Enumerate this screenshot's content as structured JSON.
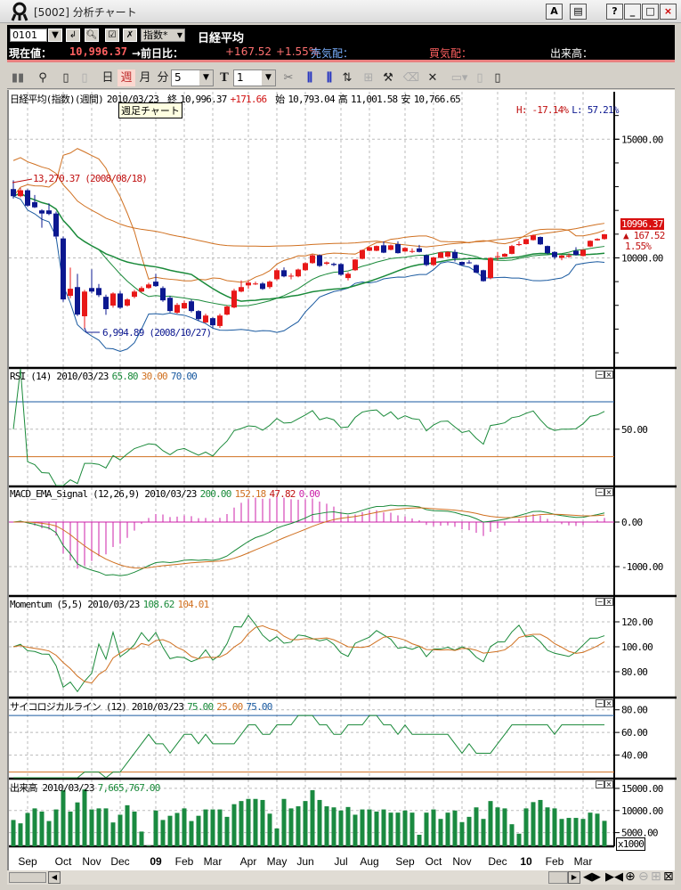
{
  "window": {
    "title": "[5002]  分析チャート",
    "buttons": [
      "A",
      "▤",
      "?",
      "_",
      "□",
      "×"
    ]
  },
  "infobar": {
    "code": "0101",
    "market_select": "指数*",
    "name": "日経平均",
    "current_label": "現在値：",
    "current_value": "10,996.37",
    "change_label": "→前日比：",
    "change_value": "+167.52",
    "change_pct": "+1.55%",
    "ask_label": "売気配：",
    "bid_label": "買気配：",
    "volume_label": "出来高："
  },
  "toolbar": {
    "periods": [
      "日",
      "週",
      "月",
      "分"
    ],
    "selected_period": "週",
    "minute_value": "5",
    "t_label": "T",
    "t_value": "1"
  },
  "main": {
    "header": {
      "title": "日経平均(指数)(週間)",
      "date": "2010/03/23",
      "close_label": "終",
      "close": "10,996.37",
      "change": "+171.66",
      "open_label": "始",
      "open": "10,793.04",
      "high_label": "高",
      "high": "11,001.58",
      "low_label": "安",
      "low": "10,766.65"
    },
    "tooltip": "週足チャート",
    "hl_h": "H: -17.14%",
    "hl_l": "L: 57.21%",
    "high_annotation": "13,270.37 (2008/08/18)",
    "low_annotation": "6,994.89 (2008/10/27)",
    "price_tag": "10996.37",
    "price_change": "▲ 167.52",
    "price_pct": "1.55%"
  },
  "panels": {
    "rsi": {
      "title": "RSI (14) 2010/03/23",
      "values": [
        "65.80",
        "30.00",
        "70.00"
      ]
    },
    "macd": {
      "title": "MACD_EMA_Signal (12,26,9) 2010/03/23",
      "values": [
        "200.00",
        "152.18",
        "47.82",
        "0.00"
      ]
    },
    "momentum": {
      "title": "Momentum (5,5) 2010/03/23",
      "values": [
        "108.62",
        "104.01"
      ]
    },
    "psych": {
      "title": "サイコロジカルライン (12) 2010/03/23",
      "values": [
        "75.00",
        "25.00",
        "75.00"
      ]
    },
    "volume": {
      "title": "出来高 2010/03/23",
      "values": [
        "7,665,767.00"
      ],
      "unit": "x1000"
    }
  },
  "colors": {
    "up": "#e81818",
    "down": "#0c1890",
    "ma_green": "#1a8a3a",
    "band_orange": "#d07020",
    "band_blue": "#1a5aa0",
    "volume": "#1a8a40",
    "hist": "#cc22aa"
  },
  "chart_data": {
    "type": "candlestick",
    "x_ticks": [
      {
        "label": "Sep",
        "week": 2
      },
      {
        "label": "Oct",
        "week": 7
      },
      {
        "label": "Nov",
        "week": 11
      },
      {
        "label": "Dec",
        "week": 15
      },
      {
        "label": "09",
        "week": 20,
        "bold": true
      },
      {
        "label": "Feb",
        "week": 24
      },
      {
        "label": "Mar",
        "week": 28
      },
      {
        "label": "Apr",
        "week": 33
      },
      {
        "label": "May",
        "week": 37
      },
      {
        "label": "Jun",
        "week": 41
      },
      {
        "label": "Jul",
        "week": 46
      },
      {
        "label": "Aug",
        "week": 50
      },
      {
        "label": "Sep",
        "week": 55
      },
      {
        "label": "Oct",
        "week": 59
      },
      {
        "label": "Nov",
        "week": 63
      },
      {
        "label": "Dec",
        "week": 68
      },
      {
        "label": "10",
        "week": 72,
        "bold": true
      },
      {
        "label": "Feb",
        "week": 76
      },
      {
        "label": "Mar",
        "week": 80
      }
    ],
    "price_axis": {
      "ylim": [
        5400,
        17000
      ],
      "ticks": [
        {
          "v": 15000,
          "label": "15000.00"
        },
        {
          "v": 10000,
          "label": "10000.00"
        }
      ],
      "minor_step": 1000
    },
    "rsi_axis": {
      "ylim": [
        9,
        94
      ],
      "ticks": [
        {
          "v": 50,
          "label": "50.00"
        }
      ],
      "levels": [
        30,
        70
      ]
    },
    "macd_axis": {
      "ylim": [
        -1640,
        780
      ],
      "ticks": [
        {
          "v": 0,
          "label": "0.00"
        },
        {
          "v": -1000,
          "label": "-1000.00"
        }
      ]
    },
    "momentum_axis": {
      "ylim": [
        60,
        140
      ],
      "ticks": [
        {
          "v": 120,
          "label": "120.00"
        },
        {
          "v": 100,
          "label": "100.00"
        },
        {
          "v": 80,
          "label": "80.00"
        }
      ]
    },
    "psych_axis": {
      "ylim": [
        20,
        90
      ],
      "ticks": [
        {
          "v": 80,
          "label": "80.00"
        },
        {
          "v": 60,
          "label": "60.00"
        },
        {
          "v": 40,
          "label": "40.00"
        }
      ],
      "levels": [
        25,
        75
      ]
    },
    "volume_axis": {
      "ylim": [
        1900,
        17000
      ],
      "ticks": [
        {
          "v": 15000,
          "label": "15000.00"
        },
        {
          "v": 10000,
          "label": "10000.00"
        },
        {
          "v": 5000,
          "label": "5000.00"
        }
      ]
    },
    "candles_ohlc": [
      [
        12900,
        13270,
        12500,
        12600
      ],
      [
        12600,
        12950,
        12550,
        12850
      ],
      [
        12850,
        12900,
        12150,
        12200
      ],
      [
        12350,
        12650,
        12100,
        12130
      ],
      [
        12000,
        12050,
        11270,
        11870
      ],
      [
        12000,
        12300,
        11800,
        11850
      ],
      [
        11870,
        11950,
        10800,
        10900
      ],
      [
        10820,
        10900,
        8150,
        8250
      ],
      [
        8400,
        9590,
        8300,
        8700
      ],
      [
        8770,
        9330,
        7550,
        7610
      ],
      [
        7540,
        8650,
        6995,
        8580
      ],
      [
        8730,
        9520,
        8500,
        8580
      ],
      [
        8730,
        8900,
        8350,
        8430
      ],
      [
        8360,
        8450,
        7600,
        7840
      ],
      [
        7990,
        8550,
        7900,
        8500
      ],
      [
        8500,
        8600,
        7850,
        7900
      ],
      [
        7990,
        8300,
        7950,
        8250
      ],
      [
        8360,
        8650,
        8300,
        8580
      ],
      [
        8580,
        8800,
        8550,
        8730
      ],
      [
        8730,
        8950,
        8700,
        8880
      ],
      [
        9000,
        9330,
        8780,
        8810
      ],
      [
        8730,
        8800,
        8150,
        8210
      ],
      [
        8320,
        8400,
        7700,
        7760
      ],
      [
        7690,
        8100,
        7650,
        8020
      ],
      [
        7870,
        8200,
        7850,
        8100
      ],
      [
        8170,
        8250,
        7700,
        7760
      ],
      [
        7760,
        7800,
        7350,
        7420
      ],
      [
        7280,
        7650,
        7250,
        7570
      ],
      [
        7460,
        7500,
        7050,
        7160
      ],
      [
        7130,
        7650,
        7050,
        7570
      ],
      [
        7610,
        8000,
        7580,
        7950
      ],
      [
        7910,
        8700,
        7880,
        8620
      ],
      [
        8580,
        9050,
        8550,
        8770
      ],
      [
        8840,
        9050,
        8700,
        8960
      ],
      [
        8920,
        9000,
        8860,
        8920
      ],
      [
        8920,
        8980,
        8650,
        8690
      ],
      [
        8770,
        9050,
        8700,
        9000
      ],
      [
        9100,
        9550,
        9050,
        9480
      ],
      [
        9480,
        9600,
        9180,
        9220
      ],
      [
        9220,
        9350,
        9100,
        9250
      ],
      [
        9220,
        9550,
        9180,
        9510
      ],
      [
        9480,
        9820,
        9450,
        9780
      ],
      [
        9780,
        10150,
        9750,
        10110
      ],
      [
        10110,
        10150,
        9620,
        9660
      ],
      [
        9750,
        9850,
        9700,
        9810
      ],
      [
        9750,
        9800,
        9650,
        9700
      ],
      [
        9740,
        9780,
        9250,
        9290
      ],
      [
        9150,
        9400,
        9050,
        9330
      ],
      [
        9480,
        9950,
        9450,
        9930
      ],
      [
        9960,
        10350,
        9940,
        10330
      ],
      [
        10300,
        10470,
        10280,
        10450
      ],
      [
        10300,
        10520,
        10280,
        10500
      ],
      [
        10530,
        10700,
        10200,
        10220
      ],
      [
        10340,
        10560,
        10320,
        10530
      ],
      [
        10580,
        10700,
        10180,
        10200
      ],
      [
        10270,
        10450,
        10250,
        10420
      ],
      [
        10280,
        10400,
        10200,
        10290
      ],
      [
        10400,
        10550,
        10230,
        10250
      ],
      [
        10110,
        10150,
        9650,
        9700
      ],
      [
        9700,
        10050,
        9650,
        10020
      ],
      [
        10000,
        10250,
        9980,
        10230
      ],
      [
        10050,
        10280,
        10030,
        10250
      ],
      [
        10250,
        10350,
        9850,
        9980
      ],
      [
        9830,
        9850,
        9680,
        9700
      ],
      [
        9810,
        9900,
        9760,
        9780
      ],
      [
        9700,
        9720,
        9350,
        9380
      ],
      [
        9480,
        9500,
        9000,
        9020
      ],
      [
        9150,
        10020,
        9100,
        10000
      ],
      [
        10050,
        10250,
        9900,
        10070
      ],
      [
        10050,
        10200,
        10030,
        10170
      ],
      [
        10170,
        10550,
        10150,
        10500
      ],
      [
        10540,
        10700,
        10500,
        10580
      ],
      [
        10580,
        10800,
        10560,
        10790
      ],
      [
        10750,
        10980,
        10730,
        10950
      ],
      [
        10880,
        10900,
        10550,
        10570
      ],
      [
        10500,
        10520,
        10150,
        10200
      ],
      [
        10250,
        10280,
        9950,
        10030
      ],
      [
        10000,
        10120,
        9900,
        10100
      ],
      [
        10050,
        10180,
        10000,
        10100
      ],
      [
        10300,
        10450,
        10100,
        10120
      ],
      [
        10080,
        10360,
        10060,
        10340
      ],
      [
        10480,
        10740,
        10460,
        10720
      ],
      [
        10740,
        10830,
        10720,
        10800
      ],
      [
        10793.04,
        11001.58,
        10766.65,
        10996.37
      ]
    ],
    "volume_thousands": [
      7860,
      7100,
      9450,
      10480,
      9760,
      7620,
      10240,
      14600,
      9760,
      11830,
      14760,
      10240,
      10480,
      10480,
      7300,
      9050,
      11190,
      9760,
      5240,
      2100,
      10000,
      7860,
      8810,
      9450,
      10480,
      7620,
      8810,
      10240,
      10240,
      10240,
      8570,
      11430,
      12140,
      12620,
      12620,
      12380,
      9290,
      5950,
      12620,
      10480,
      10950,
      12140,
      14600,
      12380,
      10950,
      10710,
      10000,
      10790,
      9050,
      10240,
      10240,
      9760,
      10240,
      9520,
      9520,
      10000,
      9520,
      4520,
      9520,
      10240,
      8100,
      9520,
      10000,
      7380,
      8570,
      10710,
      8100,
      12140,
      10710,
      10480,
      6900,
      4760,
      10480,
      11900,
      12380,
      10710,
      10480,
      8100,
      8330,
      8330,
      8100,
      9520,
      9290,
      7666
    ]
  }
}
